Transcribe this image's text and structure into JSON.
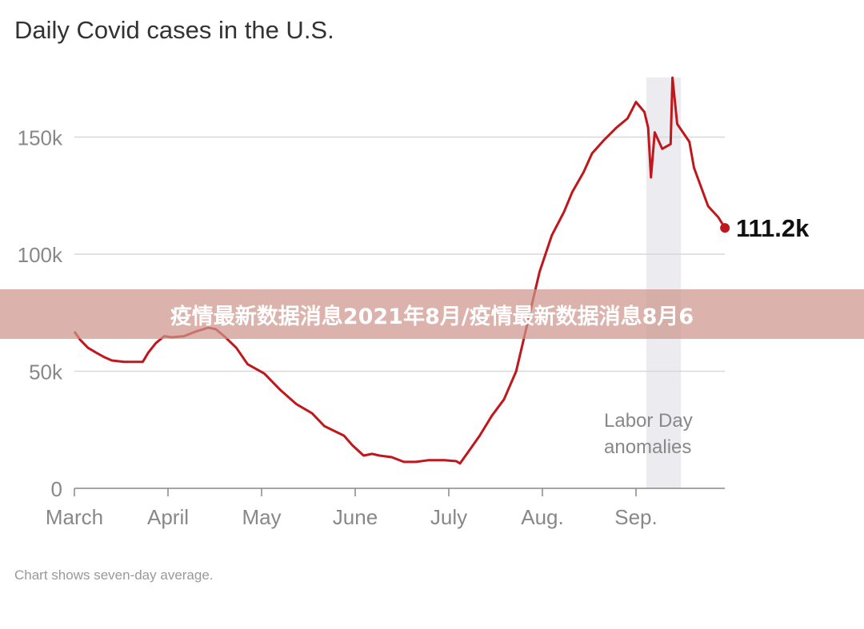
{
  "chart_data": {
    "type": "line",
    "title": "Daily Covid cases in the U.S.",
    "note": "Chart shows seven-day average.",
    "xlabel": "",
    "ylabel": "",
    "x_units": "months since March 1",
    "xlim": [
      0,
      6.95
    ],
    "ylim": [
      0,
      175000
    ],
    "grid": true,
    "x_ticks": [
      {
        "value": 0,
        "label": "March"
      },
      {
        "value": 1,
        "label": "April"
      },
      {
        "value": 2,
        "label": "May"
      },
      {
        "value": 3,
        "label": "June"
      },
      {
        "value": 4,
        "label": "July"
      },
      {
        "value": 5,
        "label": "Aug."
      },
      {
        "value": 6,
        "label": "Sep."
      }
    ],
    "y_ticks": [
      {
        "value": 0,
        "label": "0"
      },
      {
        "value": 50000,
        "label": "50k"
      },
      {
        "value": 100000,
        "label": "100k"
      },
      {
        "value": 150000,
        "label": "150k"
      }
    ],
    "series": [
      {
        "name": "Daily cases (7-day average)",
        "color": "#c0171c",
        "x": [
          0,
          0.06,
          0.145,
          0.23,
          0.32,
          0.4,
          0.53,
          0.66,
          0.73,
          0.79,
          0.87,
          0.96,
          1.04,
          1.17,
          1.3,
          1.43,
          1.51,
          1.6,
          1.73,
          1.85,
          2.03,
          2.2,
          2.37,
          2.54,
          2.67,
          2.88,
          2.97,
          3.09,
          3.18,
          3.26,
          3.39,
          3.52,
          3.65,
          3.78,
          3.95,
          4.08,
          4.12,
          4.21,
          4.33,
          4.46,
          4.59,
          4.72,
          4.85,
          4.97,
          5.1,
          5.23,
          5.32,
          5.44,
          5.53,
          5.66,
          5.79,
          5.91,
          6.0,
          6.09,
          6.13,
          6.16,
          6.2,
          6.28,
          6.37,
          6.39,
          6.44,
          6.57,
          6.62,
          6.77,
          6.88,
          6.95
        ],
        "values": [
          66900,
          63500,
          60000,
          58000,
          56000,
          54600,
          54000,
          54000,
          54000,
          58000,
          62000,
          65000,
          64500,
          65000,
          67000,
          68600,
          68000,
          65000,
          60000,
          53000,
          49000,
          42000,
          36000,
          32000,
          26600,
          22500,
          18400,
          14000,
          14700,
          14000,
          13300,
          11300,
          11300,
          12000,
          12000,
          11600,
          10600,
          15700,
          22500,
          31000,
          38000,
          50000,
          72000,
          92500,
          108000,
          118000,
          126600,
          135000,
          143000,
          148800,
          154000,
          158000,
          165000,
          160700,
          154000,
          132800,
          152000,
          145000,
          147000,
          175400,
          155600,
          148000,
          136900,
          120500,
          115700,
          111200
        ]
      }
    ],
    "annotations": [
      {
        "type": "shaded_band",
        "x_range": [
          6.11,
          6.48
        ],
        "label_lines": [
          "Labor Day",
          "anomalies"
        ],
        "color": "#ececf0"
      },
      {
        "type": "end_label",
        "x": 6.95,
        "y": 111200,
        "label": "111.2k"
      }
    ]
  },
  "banner": {
    "text": "疫情最新数据消息2021年8月/疫情最新数据消息8月6"
  }
}
